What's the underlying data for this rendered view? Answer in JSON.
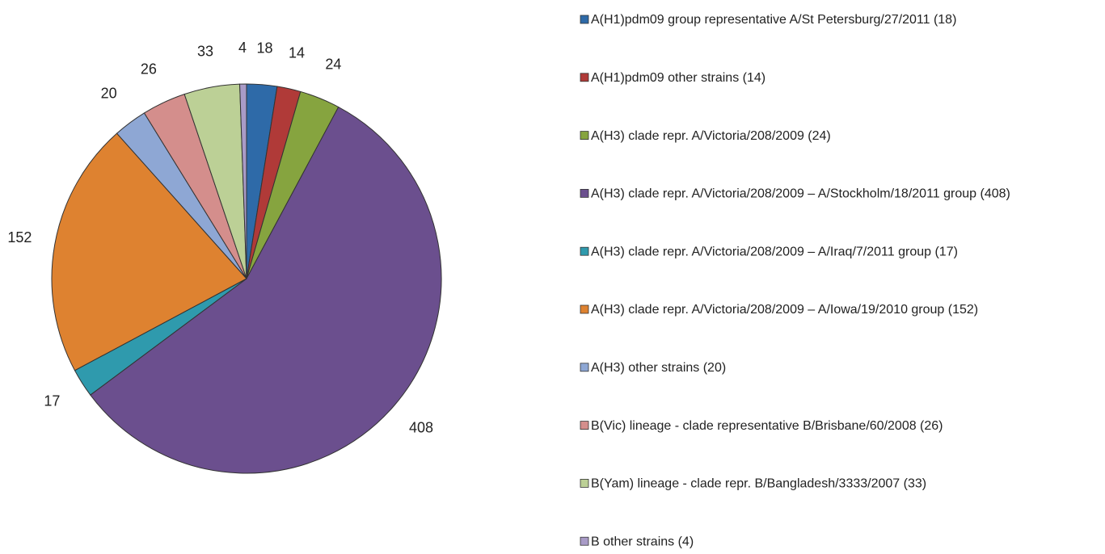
{
  "chart_data": {
    "type": "pie",
    "categories": [
      "A(H1)pdm09 group representative A/St Petersburg/27/2011 (18)",
      "A(H1)pdm09 other strains (14)",
      "A(H3) clade repr. A/Victoria/208/2009 (24)",
      "A(H3) clade repr. A/Victoria/208/2009 – A/Stockholm/18/2011 group (408)",
      "A(H3) clade repr. A/Victoria/208/2009 – A/Iraq/7/2011 group (17)",
      "A(H3) clade repr. A/Victoria/208/2009 – A/Iowa/19/2010 group (152)",
      "A(H3) other strains (20)",
      "B(Vic) lineage - clade representative B/Brisbane/60/2008  (26)",
      "B(Yam) lineage - clade repr. B/Bangladesh/3333/2007 (33)",
      "B other strains  (4)"
    ],
    "values": [
      18,
      14,
      24,
      408,
      17,
      152,
      20,
      26,
      33,
      4
    ],
    "colors": [
      "#2e6aa8",
      "#b03a38",
      "#86a43f",
      "#6b4f8e",
      "#2f9aad",
      "#de8230",
      "#8ea7d4",
      "#d48e8c",
      "#bcd096",
      "#a99bc7"
    ],
    "legend": "right"
  }
}
